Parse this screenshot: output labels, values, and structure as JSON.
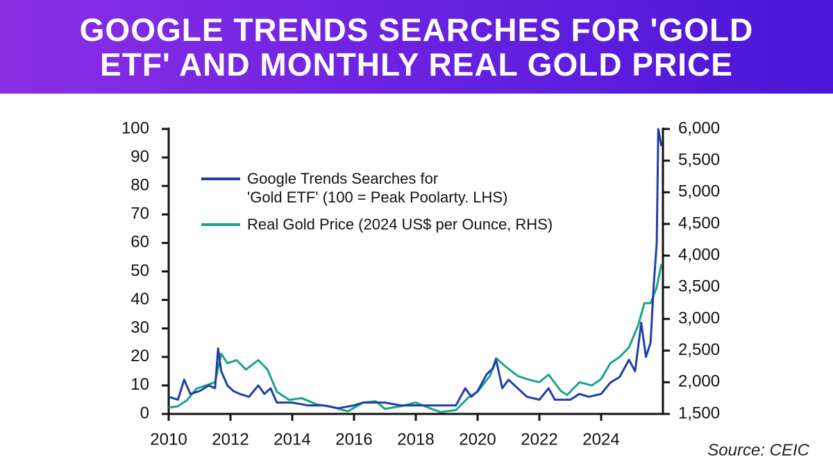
{
  "chart_data": {
    "type": "line",
    "title": "GOOGLE TRENDS SEARCHES FOR 'GOLD\nETF' AND MONTHLY REAL GOLD PRICE",
    "source": "Source: CEIC",
    "xlim": [
      2010,
      2026
    ],
    "xticks": [
      2010,
      2012,
      2014,
      2016,
      2018,
      2020,
      2022,
      2024
    ],
    "ylim": [
      0,
      100
    ],
    "yticks": [
      0,
      10,
      20,
      30,
      40,
      50,
      60,
      70,
      80,
      90,
      100
    ],
    "y2lim": [
      1500,
      6000
    ],
    "y2ticks": [
      {
        "value": 1500,
        "label": "1,500"
      },
      {
        "value": 2000,
        "label": "2,000"
      },
      {
        "value": 2500,
        "label": "2,500"
      },
      {
        "value": 3000,
        "label": "3,000"
      },
      {
        "value": 3500,
        "label": "3,500"
      },
      {
        "value": 4000,
        "label": "4,000"
      },
      {
        "value": 4500,
        "label": "4,500"
      },
      {
        "value": 5000,
        "label": "5,000"
      },
      {
        "value": 5500,
        "label": "5,500"
      },
      {
        "value": 6000,
        "label": "6,000"
      }
    ],
    "series": [
      {
        "name": "Google Trends Searches for\n'Gold ETF' (100 = Peak Poolarty. LHS)",
        "color": "#1f3fa6",
        "x": [
          2010.0,
          2010.3,
          2010.5,
          2010.7,
          2011.0,
          2011.3,
          2011.5,
          2011.6,
          2011.7,
          2011.9,
          2012.1,
          2012.3,
          2012.6,
          2012.9,
          2013.1,
          2013.3,
          2013.5,
          2014.0,
          2014.5,
          2015.0,
          2015.5,
          2016.0,
          2016.3,
          2016.6,
          2017.0,
          2017.5,
          2018.0,
          2018.5,
          2019.0,
          2019.3,
          2019.6,
          2019.8,
          2020.0,
          2020.3,
          2020.5,
          2020.6,
          2020.8,
          2021.0,
          2021.3,
          2021.6,
          2022.0,
          2022.3,
          2022.5,
          2023.0,
          2023.3,
          2023.6,
          2024.0,
          2024.3,
          2024.6,
          2024.9,
          2025.1,
          2025.3,
          2025.45,
          2025.6,
          2025.7,
          2025.8,
          2025.85,
          2025.95
        ],
        "values": [
          6,
          5,
          12,
          7,
          8,
          10,
          9,
          23,
          15,
          10,
          8,
          7,
          6,
          10,
          7,
          9,
          4,
          4,
          3,
          3,
          2,
          3,
          4,
          4,
          4,
          3,
          3,
          3,
          3,
          3,
          9,
          6,
          8,
          14,
          16,
          19,
          9,
          12,
          9,
          6,
          5,
          9,
          5,
          5,
          7,
          6,
          7,
          11,
          13,
          19,
          15,
          32,
          20,
          25,
          45,
          60,
          100,
          94
        ]
      },
      {
        "name": "Real Gold Price (2024 US$ per Ounce, RHS)",
        "color": "#1aa38a",
        "axis": "y2",
        "x": [
          2010.0,
          2010.3,
          2010.6,
          2010.9,
          2011.2,
          2011.5,
          2011.7,
          2011.9,
          2012.2,
          2012.5,
          2012.9,
          2013.2,
          2013.5,
          2013.9,
          2014.3,
          2014.8,
          2015.2,
          2015.8,
          2016.3,
          2016.7,
          2017.0,
          2017.5,
          2018.0,
          2018.5,
          2018.8,
          2019.3,
          2019.7,
          2020.0,
          2020.4,
          2020.6,
          2020.9,
          2021.3,
          2021.6,
          2022.0,
          2022.3,
          2022.7,
          2022.9,
          2023.3,
          2023.7,
          2024.0,
          2024.3,
          2024.6,
          2024.9,
          2025.2,
          2025.4,
          2025.6,
          2025.8,
          2025.95
        ],
        "values": [
          1600,
          1620,
          1720,
          1900,
          1950,
          2000,
          2450,
          2300,
          2350,
          2200,
          2350,
          2200,
          1850,
          1720,
          1750,
          1650,
          1620,
          1540,
          1680,
          1700,
          1580,
          1620,
          1680,
          1580,
          1530,
          1560,
          1760,
          1850,
          2100,
          2380,
          2250,
          2100,
          2050,
          2000,
          2120,
          1860,
          1800,
          2000,
          1950,
          2050,
          2300,
          2400,
          2550,
          2900,
          3250,
          3250,
          3500,
          3870
        ]
      }
    ]
  }
}
